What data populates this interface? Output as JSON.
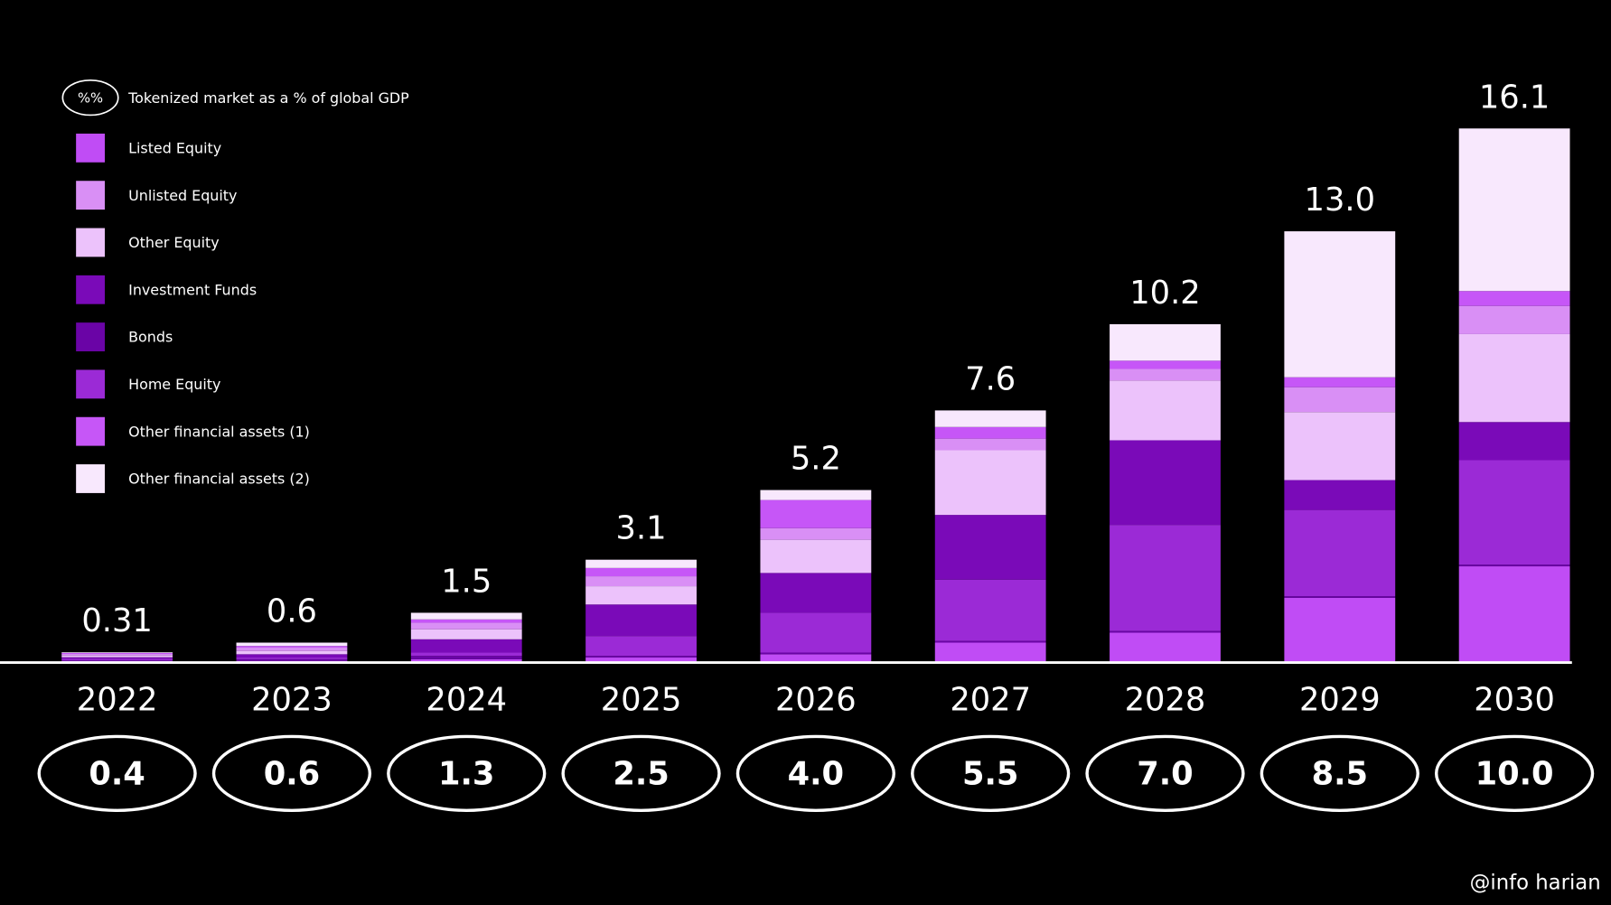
{
  "chart_data": {
    "type": "stacked-bar",
    "categories": [
      "2022",
      "2023",
      "2024",
      "2025",
      "2026",
      "2027",
      "2028",
      "2029",
      "2030"
    ],
    "series": [
      {
        "name": "Listed Equity",
        "color": "#c04cf5",
        "values": [
          0.05,
          0.05,
          0.1,
          0.15,
          0.25,
          0.6,
          0.9,
          1.95,
          2.9
        ]
      },
      {
        "name": "Unlisted Equity",
        "color": "#d98ff5",
        "values": [
          0.05,
          0.1,
          0.2,
          0.3,
          0.35,
          0.35,
          0.35,
          0.75,
          0.85
        ]
      },
      {
        "name": "Other Equity",
        "color": "#ecc2fb",
        "values": [
          0.05,
          0.1,
          0.3,
          0.55,
          1.0,
          1.95,
          1.8,
          2.05,
          2.65
        ]
      },
      {
        "name": "Investment Funds",
        "color": "#7a0ab8",
        "values": [
          0.04,
          0.1,
          0.4,
          0.95,
          1.2,
          1.95,
          2.55,
          0.9,
          1.15
        ]
      },
      {
        "name": "Bonds",
        "color": "#6a04a6",
        "values": [
          0.02,
          0.05,
          0.1,
          0.05,
          0.05,
          0.05,
          0.05,
          0.05,
          0.05
        ]
      },
      {
        "name": "Home Equity",
        "color": "#9b2ad6",
        "values": [
          0.05,
          0.05,
          0.1,
          0.6,
          1.2,
          1.85,
          3.2,
          2.6,
          3.15
        ]
      },
      {
        "name": "Other financial assets (1)",
        "color": "#c656f7",
        "values": [
          0.03,
          0.05,
          0.1,
          0.25,
          0.85,
          0.35,
          0.25,
          0.3,
          0.45
        ]
      },
      {
        "name": "Other financial assets (2)",
        "color": "#f8e8fd",
        "values": [
          0.02,
          0.1,
          0.2,
          0.25,
          0.3,
          0.5,
          1.1,
          4.4,
          4.9
        ]
      }
    ],
    "totals": {
      "values": [
        0.31,
        0.6,
        1.5,
        3.1,
        5.2,
        7.6,
        10.2,
        13.0,
        16.1
      ],
      "value_labels": [
        "0.31",
        "0.6",
        "1.5",
        "3.1",
        "5.2",
        "7.6",
        "10.2",
        "13.0",
        "16.1"
      ]
    },
    "gdp_share": {
      "name": "Tokenized market as a % of global GDP",
      "marker": "%%",
      "values": [
        0.4,
        0.6,
        1.3,
        2.5,
        4.0,
        5.5,
        7.0,
        8.5,
        10.0
      ],
      "value_labels": [
        "0.4",
        "0.6",
        "1.3",
        "2.5",
        "4.0",
        "5.5",
        "7.0",
        "8.5",
        "10.0"
      ]
    }
  },
  "watermark": "@info harian"
}
